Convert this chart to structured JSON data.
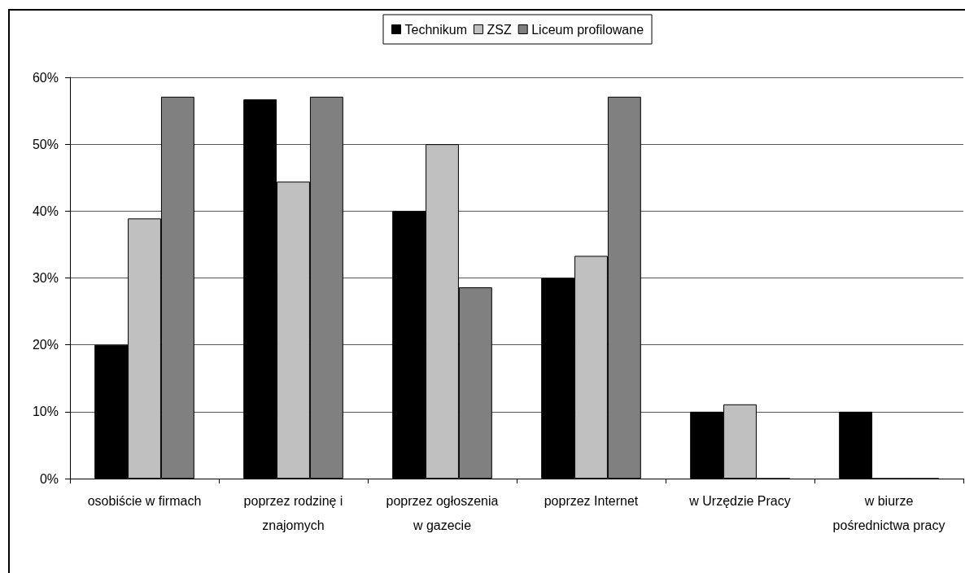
{
  "chart_data": {
    "type": "bar",
    "categories": [
      "osobiście w firmach",
      "poprzez rodzinę i znajomych",
      "poprzez ogłoszenia w gazecie",
      "poprzez Internet",
      "w Urzędzie Pracy",
      "w biurze pośrednictwa pracy"
    ],
    "series": [
      {
        "name": "Technikum",
        "color": "#000000",
        "values": [
          20,
          56.7,
          40,
          30,
          10,
          10
        ]
      },
      {
        "name": "ZSZ",
        "color": "#c0c0c0",
        "values": [
          38.9,
          44.4,
          50,
          33.3,
          11.1,
          0
        ]
      },
      {
        "name": "Liceum profilowane",
        "color": "#808080",
        "values": [
          57.1,
          57.1,
          28.6,
          57.1,
          0,
          0
        ]
      }
    ],
    "ylim": [
      0,
      60
    ],
    "yticks": [
      {
        "value": 0,
        "label": "0%"
      },
      {
        "value": 10,
        "label": "10%"
      },
      {
        "value": 20,
        "label": "20%"
      },
      {
        "value": 30,
        "label": "30%"
      },
      {
        "value": 40,
        "label": "40%"
      },
      {
        "value": 50,
        "label": "50%"
      },
      {
        "value": 60,
        "label": "60%"
      }
    ],
    "grid": "y",
    "legend": "top"
  }
}
